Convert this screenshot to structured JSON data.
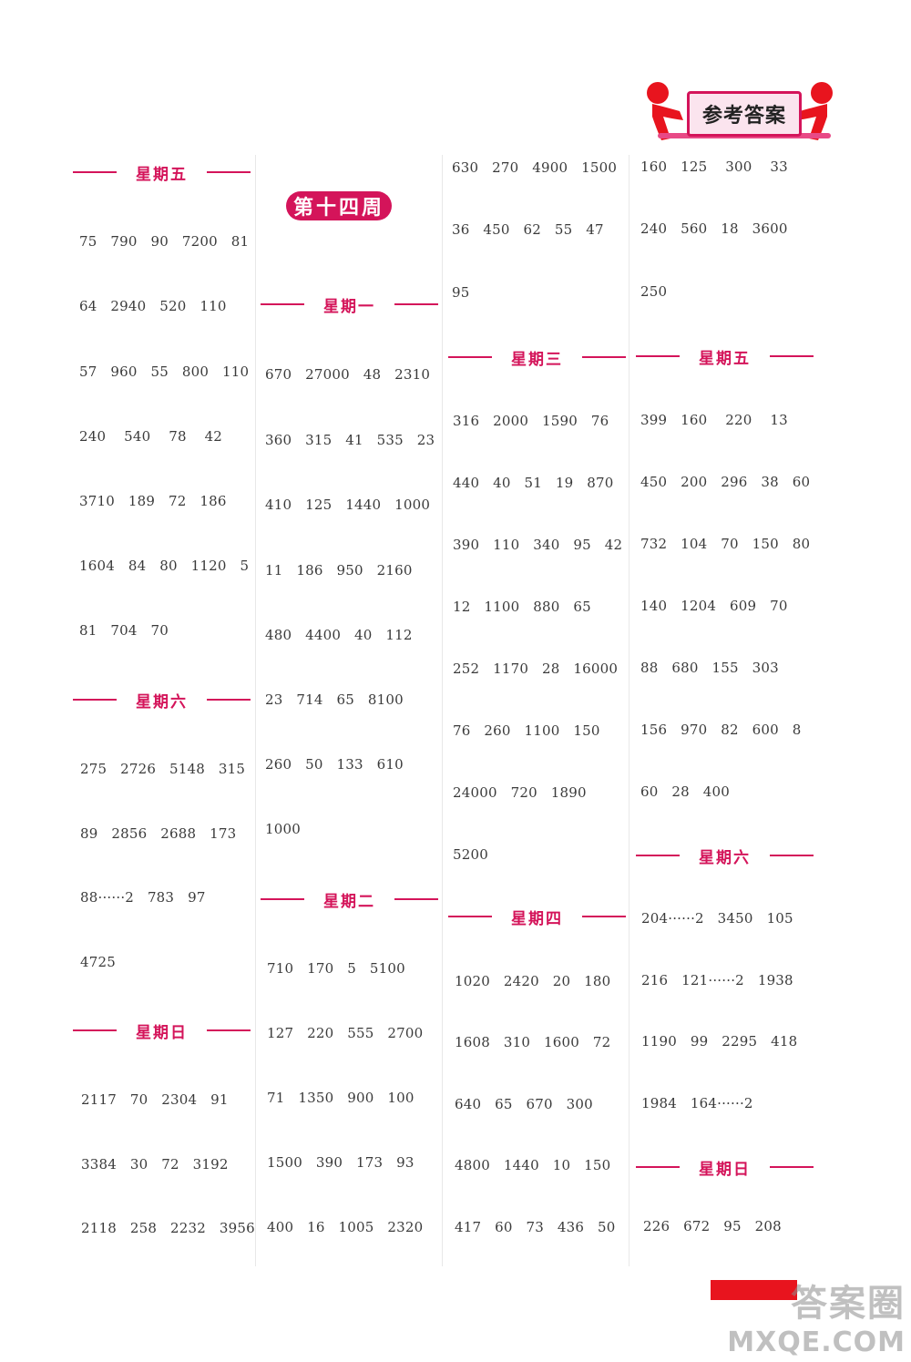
{
  "header": {
    "answers_label": "参考答案"
  },
  "week_label": "第十四周",
  "columns": [
    {
      "sections": [
        {
          "day": "星期五",
          "rows": [
            "75   790   90   7200   81",
            "64   2940   520   110",
            "57   960   55   800   110",
            "240    540    78    42",
            "3710   189   72   186",
            "1604   84   80   1120   5",
            "81   704   70"
          ]
        },
        {
          "day": "星期六",
          "rows": [
            "275   2726   5148   315",
            "89   2856   2688   173",
            "88······2   783   97",
            "4725"
          ]
        },
        {
          "day": "星期日",
          "rows": [
            "2117   70   2304   91",
            "3384   30   72   3192",
            "2118   258   2232   3956"
          ]
        }
      ]
    },
    {
      "sections": [
        {
          "day": "星期一",
          "rows": [
            "670   27000   48   2310",
            "360   315   41   535   23",
            "410   125   1440   1000",
            "11   186   950   2160",
            "480   4400   40   112",
            "23   714   65   8100",
            "260   50   133   610",
            "1000"
          ]
        },
        {
          "day": "星期二",
          "rows": [
            "710   170   5   5100",
            "127   220   555   2700",
            "71   1350   900   100",
            "1500   390   173   93",
            "400   16   1005   2320"
          ]
        }
      ]
    },
    {
      "lead_rows": [
        "630   270   4900   1500",
        "36   450   62   55   47",
        "95"
      ],
      "sections": [
        {
          "day": "星期三",
          "rows": [
            "316   2000   1590   76",
            "440   40   51   19   870",
            "390   110   340   95   42",
            "12   1100   880   65",
            "252   1170   28   16000",
            "76   260   1100   150",
            "24000   720   1890",
            "5200"
          ]
        },
        {
          "day": "星期四",
          "rows": [
            "1020   2420   20   180",
            "1608   310   1600   72",
            "640   65   670   300",
            "4800   1440   10   150",
            "417   60   73   436   50"
          ]
        }
      ]
    },
    {
      "lead_rows": [
        "160   125    300    33",
        "240   560   18   3600",
        "250"
      ],
      "sections": [
        {
          "day": "星期五",
          "rows": [
            "399   160    220    13",
            "450   200   296   38   60",
            "732   104   70   150   80",
            "140   1204   609   70",
            "88   680   155   303",
            "156   970   82   600   8",
            "60   28   400"
          ]
        },
        {
          "day": "星期六",
          "rows": [
            "204······2   3450   105",
            "216   121······2   1938",
            "1190   99   2295   418",
            "1984   164······2"
          ]
        },
        {
          "day": "星期日",
          "rows": [
            "226   672   95   208"
          ]
        }
      ]
    }
  ],
  "footer": {
    "watermark_top": "答案圈",
    "watermark_bottom": "MXQE.COM"
  },
  "colors": {
    "accent": "#d4145a",
    "page_bar": "#e8141e"
  }
}
